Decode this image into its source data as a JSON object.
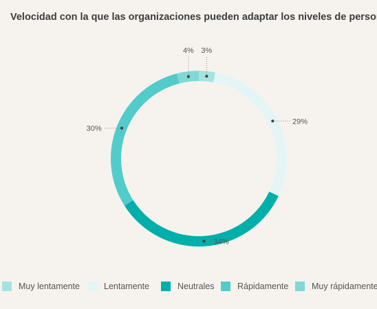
{
  "chart_data": {
    "type": "pie",
    "title": "Velocidad con la que las organizaciones pueden adaptar los niveles de personal",
    "categories": [
      "Muy lentamente",
      "Lentamente",
      "Neutrales",
      "Rápidamente",
      "Muy rápidamente"
    ],
    "values": [
      3,
      29,
      34,
      30,
      4
    ],
    "value_labels": [
      "3%",
      "29%",
      "34%",
      "30%",
      "4%"
    ],
    "colors": [
      "#a6e3e0",
      "#e5f5f6",
      "#00afaa",
      "#52cbcb",
      "#7fd9d6"
    ],
    "donut": true,
    "legend_position": "bottom",
    "grid": false
  }
}
